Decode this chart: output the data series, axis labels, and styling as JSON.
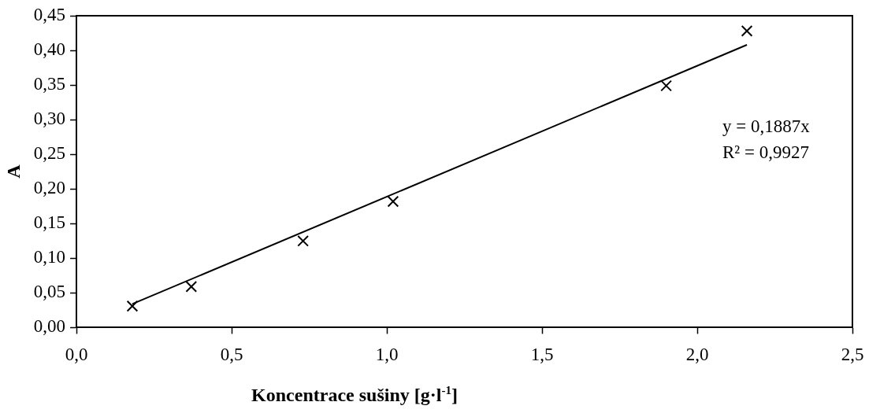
{
  "chart_data": {
    "type": "scatter",
    "xlabel": "Koncentrace sušiny [g·l$^{-1}$]",
    "ylabel": "A",
    "x": [
      0.18,
      0.37,
      0.73,
      1.02,
      1.9,
      2.16
    ],
    "series": [
      {
        "color": "#000000",
        "marker": "cross",
        "values": [
          0.031,
          0.059,
          0.125,
          0.182,
          0.349,
          0.428
        ]
      },
      {
        "type": "line",
        "color": "#000000",
        "marker": "none",
        "x": [
          0.18,
          2.16
        ],
        "values": [
          0.034,
          0.408
        ]
      }
    ],
    "xlim": [
      0,
      2.5
    ],
    "ylim": [
      0,
      0.45
    ],
    "xticks": [
      {
        "value": 0,
        "label": "0,0"
      },
      {
        "value": 0.5,
        "label": "0,5"
      },
      {
        "value": 1,
        "label": "1,0"
      },
      {
        "value": 1.5,
        "label": "1,5"
      },
      {
        "value": 2,
        "label": "2,0"
      },
      {
        "value": 2.5,
        "label": "2,5"
      }
    ],
    "yticks": [
      {
        "value": 0,
        "label": "0,00"
      },
      {
        "value": 0.05,
        "label": "0,05"
      },
      {
        "value": 0.1,
        "label": "0,10"
      },
      {
        "value": 0.15,
        "label": "0,15"
      },
      {
        "value": 0.2,
        "label": "0,20"
      },
      {
        "value": 0.25,
        "label": "0,25"
      },
      {
        "value": 0.3,
        "label": "0,30"
      },
      {
        "value": 0.35,
        "label": "0,35"
      },
      {
        "value": 0.4,
        "label": "0,40"
      },
      {
        "value": 0.45,
        "label": "0,45"
      }
    ],
    "annotations": [
      "y = 0,1887x",
      "R² = 0,9927"
    ],
    "grid": false,
    "legend": false
  }
}
